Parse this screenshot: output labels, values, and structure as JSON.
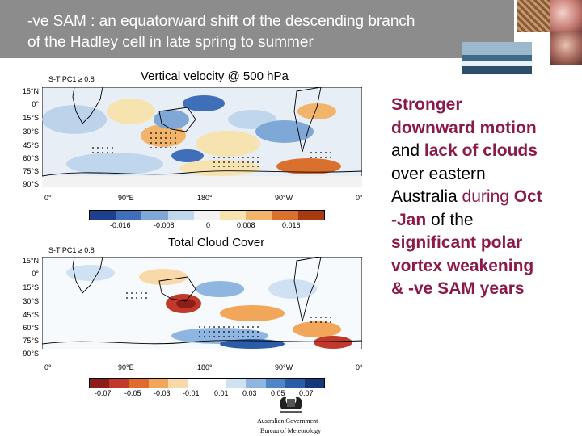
{
  "header": {
    "title_line1": "-ve SAM : an equatorward shift of the descending branch",
    "title_line2": "of the Hadley cell in late spring to summer"
  },
  "panels": {
    "top": {
      "title": "Vertical velocity @ 500 hPa",
      "tag": "S-T PC1 ≥ 0.8",
      "colorbar_labels": [
        "-0.016",
        "-0.008",
        "0",
        "0.008",
        "0.016"
      ],
      "colorbar_colors": [
        "#1e3f8c",
        "#3f6fb8",
        "#7fa8d6",
        "#bfd6ec",
        "#f2f2f2",
        "#f7e3b0",
        "#f2b36b",
        "#d9702e",
        "#a83a12"
      ]
    },
    "bottom": {
      "title": "Total Cloud Cover",
      "tag": "S-T PC1 ≥ 0.8",
      "colorbar_labels": [
        "-0.07",
        "-0.05",
        "-0.03",
        "-0.01",
        "0.01",
        "0.03",
        "0.05",
        "0.07"
      ],
      "colorbar_colors": [
        "#8c1d18",
        "#c0392b",
        "#e06b2c",
        "#f2a65a",
        "#f9d9a8",
        "#ffffff",
        "#ffffff",
        "#cfe2f3",
        "#8fb6e0",
        "#4f86c6",
        "#2a5ca8",
        "#16397a"
      ]
    },
    "lat_labels": [
      "15°N",
      "0°",
      "15°S",
      "30°S",
      "45°S",
      "60°S",
      "75°S",
      "90°S"
    ],
    "lon_labels": [
      "0°",
      "90°E",
      "180°",
      "90°W",
      "0°"
    ]
  },
  "side_text": {
    "w1": "Stronger",
    "w2": "downward motion",
    "w3": "and",
    "w4": "lack of clouds",
    "w5": "over eastern",
    "w6": "Australia",
    "w7": "during",
    "w8": "Oct",
    "w9": "-Jan",
    "w10": "of the",
    "w11": "significant polar",
    "w12": "vortex weakening",
    "w13": "& -ve SAM years"
  },
  "logo": {
    "line1": "Australian Government",
    "line2": "Bureau of Meteorology"
  }
}
